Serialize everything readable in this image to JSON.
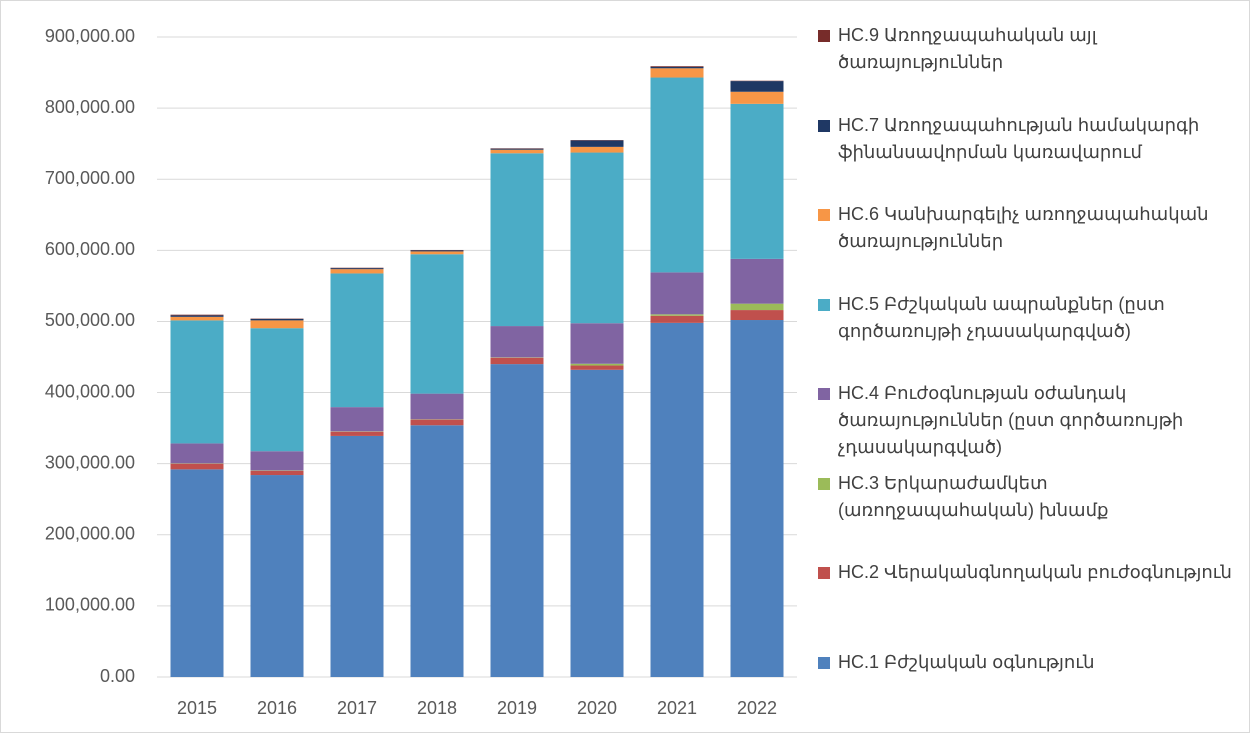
{
  "chart_data": {
    "type": "stacked_bar",
    "categories": [
      "2015",
      "2016",
      "2017",
      "2018",
      "2019",
      "2020",
      "2021",
      "2022"
    ],
    "series": [
      {
        "name": "HC.1 Բժշկական օգնություն",
        "color": "#4f81bd",
        "values": [
          292000,
          284000,
          339000,
          354000,
          440000,
          432000,
          498000,
          502000
        ]
      },
      {
        "name": "HC.2 Վերականգնողական բուժօգնություն",
        "color": "#c0504d",
        "values": [
          8000,
          6000,
          6000,
          8000,
          9000,
          6000,
          10000,
          14000
        ]
      },
      {
        "name": "HC.3 Երկարաժամկետ (առողջապահական) խնամք",
        "color": "#9bbb59",
        "values": [
          500,
          500,
          500,
          500,
          500,
          2500,
          2000,
          9000
        ]
      },
      {
        "name": "HC.4 Բուժօգնության օժանդակ ծառայություններ (ըստ գործառույթի չդասակարգված)",
        "color": "#8064a2",
        "values": [
          28000,
          27000,
          34000,
          36000,
          44000,
          57000,
          59000,
          63000
        ]
      },
      {
        "name": "HC.5 Բժշկական ապրանքներ (ըստ գործառույթի չդասակարգված)",
        "color": "#4bacc6",
        "values": [
          173000,
          173000,
          188000,
          196000,
          243000,
          240000,
          274000,
          218000
        ]
      },
      {
        "name": "HC.6 Կանխարգելիչ առողջապահական ծառայություններ",
        "color": "#f79646",
        "values": [
          5000,
          11000,
          6000,
          4000,
          5000,
          8000,
          13000,
          17000
        ]
      },
      {
        "name": "HC.7 Առողջապահության համակարգի ֆինանսավորման կառավարում",
        "color": "#1f3864",
        "values": [
          2000,
          2000,
          1500,
          1500,
          1500,
          9000,
          2000,
          15000
        ]
      },
      {
        "name": "HC.9 Առողջապահական այլ ծառայություններ",
        "color": "#772c2a",
        "values": [
          1000,
          500,
          500,
          500,
          500,
          500,
          1000,
          500
        ]
      }
    ],
    "ylim": [
      0,
      900000
    ],
    "yticks": [
      {
        "value": 0,
        "label": "0.00"
      },
      {
        "value": 100000,
        "label": "100,000.00"
      },
      {
        "value": 200000,
        "label": "200,000.00"
      },
      {
        "value": 300000,
        "label": "300,000.00"
      },
      {
        "value": 400000,
        "label": "400,000.00"
      },
      {
        "value": 500000,
        "label": "500,000.00"
      },
      {
        "value": 600000,
        "label": "600,000.00"
      },
      {
        "value": 700000,
        "label": "700,000.00"
      },
      {
        "value": 800000,
        "label": "800,000.00"
      },
      {
        "value": 900000,
        "label": "900,000.00"
      }
    ],
    "grid": true,
    "legend": "right"
  }
}
